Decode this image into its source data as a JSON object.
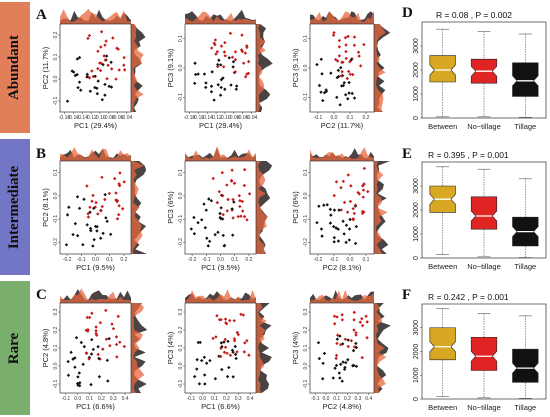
{
  "rows": [
    {
      "key": "abundant",
      "label": "Abundant",
      "color": "#e07f5a",
      "letter": "A",
      "box_letter": "D",
      "stats": "R = 0.08 , P = 0.002"
    },
    {
      "key": "intermediate",
      "label": "Intermediate",
      "color": "#7276c4",
      "letter": "B",
      "box_letter": "E",
      "stats": "R = 0.395 , P = 0.001"
    },
    {
      "key": "rare",
      "label": "Rare",
      "color": "#79ae6c",
      "letter": "C",
      "box_letter": "F",
      "stats": "R = 0.242 , P = 0.001"
    }
  ],
  "colors": {
    "red_points": "#c41a1a",
    "black_points": "#111111",
    "dens_red": "#e8683f",
    "dens_black": "#2a2222",
    "box_between": "#d9a823",
    "box_notill": "#e02424",
    "box_till": "#111111"
  },
  "chart_data": [
    {
      "type": "scatter",
      "row": "Abundant",
      "xlabel": "PC1 (29.4%)",
      "ylabel": "PC2 (11.7%)",
      "xticks": [
        "-0.18",
        "-0.16",
        "-0.14",
        "-0.12",
        "-0.10",
        "-0.08",
        "-0.06",
        "-0.04"
      ],
      "yticks": [
        "-0.1",
        "0.0",
        "0.1",
        "0.2"
      ]
    },
    {
      "type": "scatter",
      "row": "Abundant",
      "xlabel": "PC1 (29.4%)",
      "ylabel": "PC3 (9.1%)",
      "xticks": [
        "-0.18",
        "-0.16",
        "-0.14",
        "-0.12",
        "-0.10",
        "-0.08",
        "-0.06",
        "-0.04"
      ],
      "yticks": [
        "-0.1",
        "0.0",
        "0.1"
      ]
    },
    {
      "type": "scatter",
      "row": "Abundant",
      "xlabel": "PC2 (11.7%)",
      "ylabel": "PC3 (9.1%)",
      "xticks": [
        "-0.1",
        "0.0",
        "0.1",
        "0.2"
      ],
      "yticks": [
        "-0.1",
        "0.0",
        "0.1"
      ]
    },
    {
      "type": "box",
      "row": "Abundant",
      "stats": "R = 0.08 , P = 0.002",
      "categories": [
        "Between",
        "No−tillage",
        "Tillage"
      ],
      "yticks": [
        "0",
        "1000",
        "2000",
        "3000"
      ],
      "ylim": [
        0,
        4000
      ],
      "boxes": [
        {
          "q1": 1500,
          "median": 2000,
          "q3": 2600,
          "whisker_low": 50,
          "whisker_high": 3700
        },
        {
          "q1": 1450,
          "median": 1950,
          "q3": 2450,
          "whisker_low": 50,
          "whisker_high": 3600
        },
        {
          "q1": 900,
          "median": 1550,
          "q3": 2300,
          "whisker_low": 30,
          "whisker_high": 3500
        }
      ]
    },
    {
      "type": "scatter",
      "row": "Intermediate",
      "xlabel": "PC1 (9.5%)",
      "ylabel": "PC2 (8.1%)",
      "xticks": [
        "-0.2",
        "-0.1",
        "0.0",
        "0.1",
        "0.2"
      ],
      "yticks": [
        "-0.2",
        "-0.1",
        "0.0",
        "0.1"
      ]
    },
    {
      "type": "scatter",
      "row": "Intermediate",
      "xlabel": "PC1 (9.5%)",
      "ylabel": "PC3 (6%)",
      "xticks": [
        "-0.2",
        "-0.1",
        "0.0",
        "0.1",
        "0.2"
      ],
      "yticks": [
        "-0.2",
        "-0.1",
        "0.0",
        "0.1"
      ]
    },
    {
      "type": "scatter",
      "row": "Intermediate",
      "xlabel": "PC2 (8.1%)",
      "ylabel": "PC3 (6%)",
      "xticks": [
        "-0.2",
        "-0.1",
        "0.0",
        "0.1"
      ],
      "yticks": [
        "-0.2",
        "-0.1",
        "0.0",
        "0.1"
      ]
    },
    {
      "type": "box",
      "row": "Intermediate",
      "stats": "R = 0.395 , P = 0.001",
      "categories": [
        "Between",
        "No−tillage",
        "Tillage"
      ],
      "yticks": [
        "0",
        "1000",
        "2000",
        "3000"
      ],
      "ylim": [
        0,
        4000
      ],
      "boxes": [
        {
          "q1": 1900,
          "median": 2450,
          "q3": 3000,
          "whisker_low": 150,
          "whisker_high": 3800
        },
        {
          "q1": 1200,
          "median": 1750,
          "q3": 2550,
          "whisker_low": 50,
          "whisker_high": 3700
        },
        {
          "q1": 500,
          "median": 1100,
          "q3": 1700,
          "whisker_low": 20,
          "whisker_high": 3300
        }
      ]
    },
    {
      "type": "scatter",
      "row": "Rare",
      "xlabel": "PC1 (6.6%)",
      "ylabel": "PC2 (4.8%)",
      "xticks": [
        "-0.1",
        "0.0",
        "0.1",
        "0.2",
        "0.3",
        "0.4"
      ],
      "yticks": [
        "-0.1",
        "0.0",
        "0.1",
        "0.2",
        "0.3"
      ]
    },
    {
      "type": "scatter",
      "row": "Rare",
      "xlabel": "PC1 (6.6%)",
      "ylabel": "PC3 (4%)",
      "xticks": [
        "-0.1",
        "0.0",
        "0.1",
        "0.2",
        "0.3",
        "0.4"
      ],
      "yticks": [
        "-0.1",
        "0.0",
        "0.1",
        "0.2",
        "0.3"
      ]
    },
    {
      "type": "scatter",
      "row": "Rare",
      "xlabel": "PC2 (4.8%)",
      "ylabel": "PC3 (4%)",
      "xticks": [
        "-0.1",
        "0.0",
        "0.1",
        "0.2",
        "0.3",
        "0.4"
      ],
      "yticks": [
        "-0.1",
        "0.0",
        "0.1",
        "0.2",
        "0.3"
      ]
    },
    {
      "type": "box",
      "row": "Rare",
      "stats": "R = 0.242 , P = 0.001",
      "categories": [
        "Between",
        "No−tillage",
        "Tillage"
      ],
      "yticks": [
        "0",
        "1000",
        "2000",
        "3000"
      ],
      "ylim": [
        0,
        4000
      ],
      "boxes": [
        {
          "q1": 1650,
          "median": 2200,
          "q3": 3000,
          "whisker_low": 100,
          "whisker_high": 3800
        },
        {
          "q1": 1200,
          "median": 1800,
          "q3": 2600,
          "whisker_low": 50,
          "whisker_high": 3600
        },
        {
          "q1": 700,
          "median": 1300,
          "q3": 2100,
          "whisker_low": 30,
          "whisker_high": 3500
        }
      ]
    }
  ]
}
